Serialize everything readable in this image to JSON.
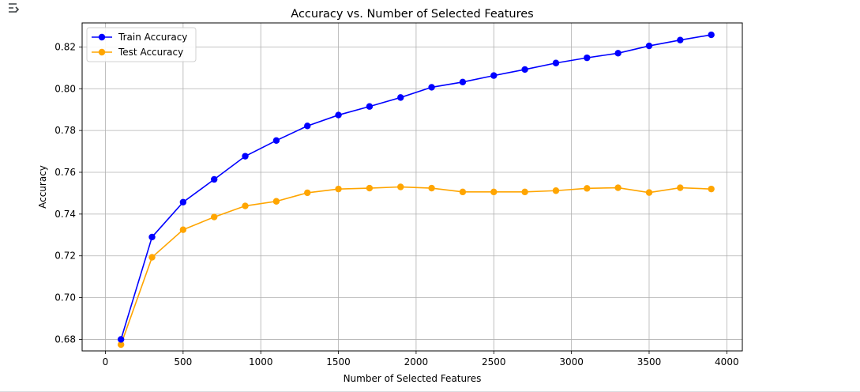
{
  "toolbar": {
    "output_icon": "output-toggle-icon"
  },
  "chart_data": {
    "type": "line",
    "title": "Accuracy vs. Number of Selected Features",
    "xlabel": "Number of Selected Features",
    "ylabel": "Accuracy",
    "xlim": [
      -150,
      4100
    ],
    "ylim": [
      0.6745,
      0.8315
    ],
    "xticks": [
      0,
      500,
      1000,
      1500,
      2000,
      2500,
      3000,
      3500,
      4000
    ],
    "yticks": [
      0.68,
      0.7,
      0.72,
      0.74,
      0.76,
      0.78,
      0.8,
      0.82
    ],
    "ytick_labels": [
      "0.68",
      "0.70",
      "0.72",
      "0.74",
      "0.76",
      "0.78",
      "0.80",
      "0.82"
    ],
    "grid": true,
    "legend_position": "top-left",
    "x": [
      100,
      300,
      500,
      700,
      900,
      1100,
      1300,
      1500,
      1700,
      1900,
      2100,
      2300,
      2500,
      2700,
      2900,
      3100,
      3300,
      3500,
      3700,
      3900
    ],
    "series": [
      {
        "name": "Train Accuracy",
        "color": "#0000ff",
        "values": [
          0.68,
          0.729,
          0.7457,
          0.7566,
          0.7677,
          0.7752,
          0.7822,
          0.7874,
          0.7915,
          0.7958,
          0.8007,
          0.8032,
          0.8063,
          0.8092,
          0.8123,
          0.8148,
          0.817,
          0.8205,
          0.8233,
          0.8258
        ]
      },
      {
        "name": "Test Accuracy",
        "color": "#ffa500",
        "values": [
          0.6775,
          0.7193,
          0.7325,
          0.7386,
          0.7439,
          0.7461,
          0.7502,
          0.752,
          0.7524,
          0.753,
          0.7524,
          0.7506,
          0.7506,
          0.7506,
          0.7512,
          0.7523,
          0.7526,
          0.7503,
          0.7526,
          0.752
        ]
      }
    ]
  }
}
